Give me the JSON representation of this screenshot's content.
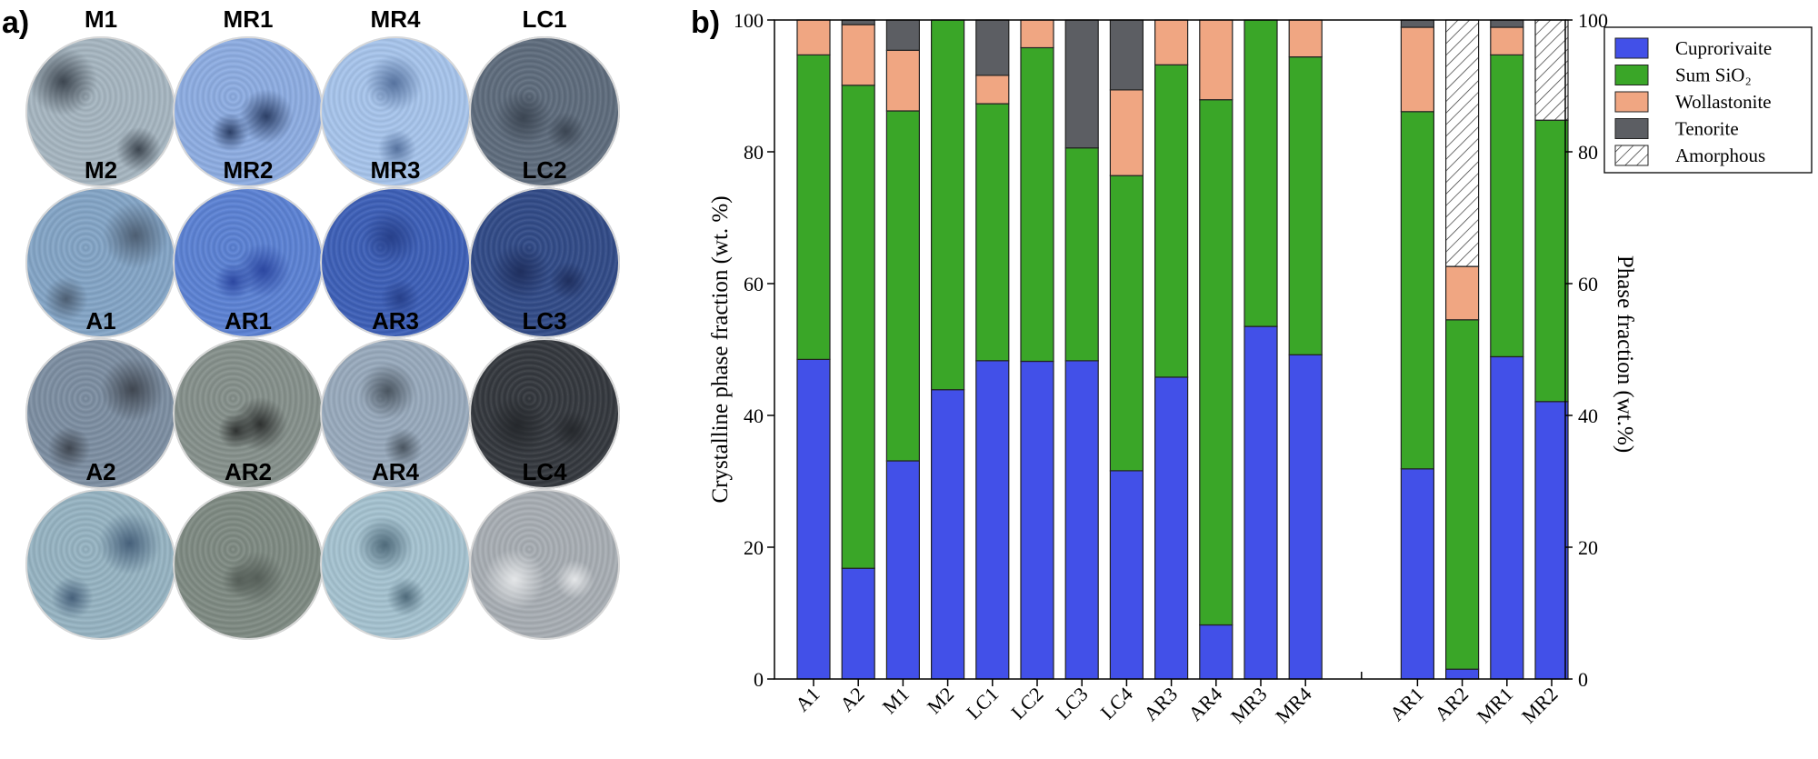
{
  "panel_a_label": "a)",
  "panel_b_label": "b)",
  "photos": [
    {
      "name": "M1",
      "color": "#a7b7c2",
      "spot": "#3d4650"
    },
    {
      "name": "MR1",
      "color": "#8eaee4",
      "spot": "#2c3f66"
    },
    {
      "name": "MR4",
      "color": "#a8c6ee",
      "spot": "#56729e"
    },
    {
      "name": "LC1",
      "color": "#5e6c7d",
      "spot": "#3b4552"
    },
    {
      "name": "M2",
      "color": "#84a6c8",
      "spot": "#4d5e72"
    },
    {
      "name": "MR2",
      "color": "#5b82d6",
      "spot": "#2c47a0"
    },
    {
      "name": "MR3",
      "color": "#3c5fb9",
      "spot": "#27408a"
    },
    {
      "name": "LC2",
      "color": "#304a88",
      "spot": "#1f2f5e"
    },
    {
      "name": "A1",
      "color": "#7d8fa3",
      "spot": "#3f4650"
    },
    {
      "name": "AR1",
      "color": "#86918c",
      "spot": "#2e3130"
    },
    {
      "name": "AR3",
      "color": "#99abbe",
      "spot": "#4a5560"
    },
    {
      "name": "LC3",
      "color": "#33373d",
      "spot": "#25282c"
    },
    {
      "name": "A2",
      "color": "#97b5c4",
      "spot": "#46607a"
    },
    {
      "name": "AR2",
      "color": "#7f8b83",
      "spot": "#555e58"
    },
    {
      "name": "AR4",
      "color": "#a6c4d2",
      "spot": "#4f6a7a"
    },
    {
      "name": "LC4",
      "color": "#a9afb5",
      "spot": "#e4e6e8"
    }
  ],
  "chart_data": {
    "type": "bar",
    "stacked": true,
    "categories": [
      "A1",
      "A2",
      "M1",
      "M2",
      "LC1",
      "LC2",
      "LC3",
      "LC4",
      "AR3",
      "AR4",
      "MR3",
      "MR4",
      "AR1",
      "AR2",
      "MR1",
      "MR2"
    ],
    "series": [
      {
        "name": "Cuprorivaite",
        "color": "#4250e8",
        "values": [
          48.5,
          16.8,
          33.1,
          43.9,
          48.3,
          48.2,
          48.3,
          31.6,
          45.8,
          8.2,
          53.5,
          49.2,
          31.9,
          1.5,
          48.9,
          42.1
        ]
      },
      {
        "name": "Sum SiO2",
        "color": "#3aa628",
        "values": [
          46.2,
          73.3,
          53.1,
          56.1,
          39.0,
          47.6,
          32.3,
          44.8,
          47.4,
          79.7,
          46.5,
          45.2,
          54.2,
          53.0,
          45.8,
          42.7
        ]
      },
      {
        "name": "Wollastonite",
        "color": "#f0a682",
        "values": [
          5.3,
          9.2,
          9.2,
          0,
          4.3,
          4.2,
          0,
          13.0,
          6.8,
          12.1,
          0,
          5.6,
          12.8,
          8.1,
          4.2,
          0
        ]
      },
      {
        "name": "Tenorite",
        "color": "#5c5e63",
        "values": [
          0,
          0.7,
          4.6,
          0,
          8.4,
          0,
          19.4,
          10.6,
          0,
          0,
          0,
          0,
          1.1,
          0,
          1.1,
          0
        ]
      },
      {
        "name": "Amorphous",
        "color": "hatched",
        "values": [
          0,
          0,
          0,
          0,
          0,
          0,
          0,
          0,
          0,
          0,
          0,
          0,
          0,
          37.4,
          0,
          15.2
        ]
      }
    ],
    "legend_labels": [
      "Cuprorivaite",
      "Sum SiO₂",
      "Wollastonite",
      "Tenorite",
      "Amorphous"
    ],
    "group_break_after": "MR4",
    "ylabel_left": "Crystalline phase fraction (wt. %)",
    "ylabel_right": "Phase fraction (wt.%)",
    "ylim": [
      0,
      100
    ],
    "yticks": [
      "0",
      "20",
      "40",
      "60",
      "80",
      "100"
    ],
    "legend_position": "top-right"
  }
}
